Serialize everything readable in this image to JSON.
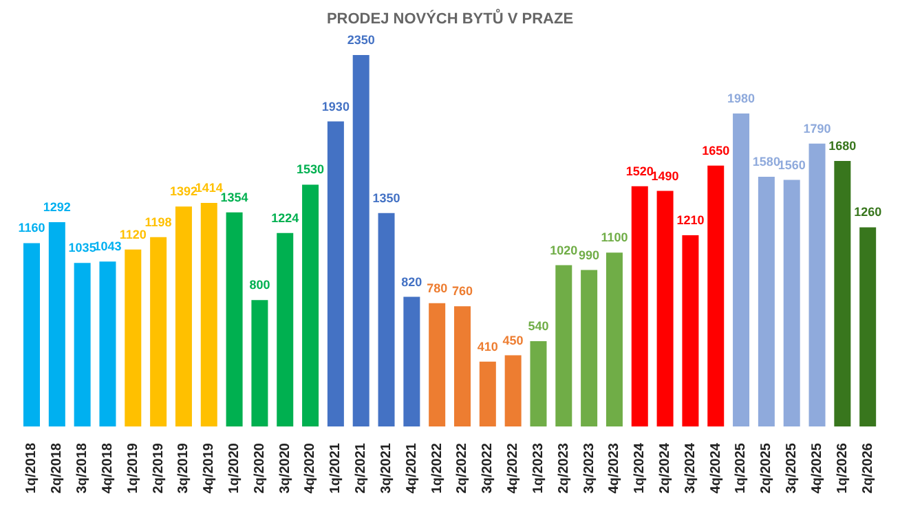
{
  "chart_data": {
    "type": "bar",
    "title": "PRODEJ NOVÝCH BYTŮ V PRAZE",
    "categories": [
      "1q/2018",
      "2q/2018",
      "3q/2018",
      "4q/2018",
      "1q/2019",
      "2q/2019",
      "3q/2019",
      "4q/2019",
      "1q/2020",
      "2q/2020",
      "3q/2020",
      "4q/2020",
      "1q/2021",
      "2q/2021",
      "3q/2021",
      "4q/2021",
      "1q/2022",
      "2q/2022",
      "3q/2022",
      "4q/2022",
      "1q/2023",
      "2q/2023",
      "3q/2023",
      "4q/2023",
      "1q/2024",
      "2q/2024",
      "3q/2024",
      "4q/2024",
      "1q/2025",
      "2q/2025",
      "3q/2025",
      "4q/2025",
      "1q/2026",
      "2q/2026"
    ],
    "values": [
      1160,
      1292,
      1035,
      1043,
      1120,
      1198,
      1392,
      1414,
      1354,
      800,
      1224,
      1530,
      1930,
      2350,
      1350,
      820,
      780,
      760,
      410,
      450,
      540,
      1020,
      990,
      1100,
      1520,
      1490,
      1210,
      1650,
      1980,
      1580,
      1560,
      1790,
      1680,
      1260
    ],
    "colors": [
      "#00b0f0",
      "#00b0f0",
      "#00b0f0",
      "#00b0f0",
      "#ffc000",
      "#ffc000",
      "#ffc000",
      "#ffc000",
      "#00b050",
      "#00b050",
      "#00b050",
      "#00b050",
      "#4472c4",
      "#4472c4",
      "#4472c4",
      "#4472c4",
      "#ed7d31",
      "#ed7d31",
      "#ed7d31",
      "#ed7d31",
      "#70ad47",
      "#70ad47",
      "#70ad47",
      "#70ad47",
      "#ff0000",
      "#ff0000",
      "#ff0000",
      "#ff0000",
      "#8faadc",
      "#8faadc",
      "#8faadc",
      "#8faadc",
      "#38761d",
      "#38761d"
    ],
    "data_labels": true,
    "grid": false,
    "legend": false
  }
}
